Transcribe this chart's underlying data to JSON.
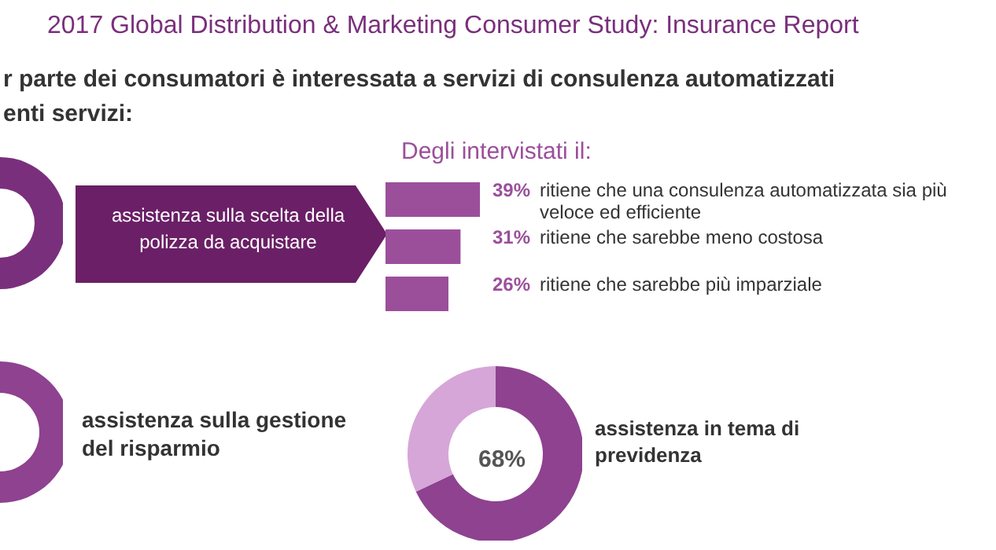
{
  "chart_data": [
    {
      "type": "other",
      "title": "2017 Global Distribution & Marketing Consumer Study: Insurance Report",
      "subtitle": "r parte dei consumatori è interessata a servizi di consulenza automatizzati",
      "annotations": [
        "enti servizi:",
        "assistenza sulla scelta della polizza da acquistare",
        "assistenza sulla gestione del risparmio"
      ]
    },
    {
      "type": "bar",
      "orientation": "horizontal",
      "title": "Degli intervistati il:",
      "categories": [
        "ritiene  che una consulenza automatizzata sia più veloce ed efficiente",
        "ritiene che sarebbe meno costosa",
        "ritiene che sarebbe più imparziale"
      ],
      "values": [
        39,
        31,
        26
      ],
      "value_labels": [
        "39%",
        "31%",
        "26%"
      ],
      "color": "#9b4f9b"
    },
    {
      "type": "donut",
      "categories": [
        "assistenza in tema di previdenza",
        null
      ],
      "values": [
        68,
        32
      ],
      "colors": [
        "#8e4290",
        "#d6a6d8"
      ],
      "value_labels": [
        "68%",
        null
      ]
    }
  ]
}
